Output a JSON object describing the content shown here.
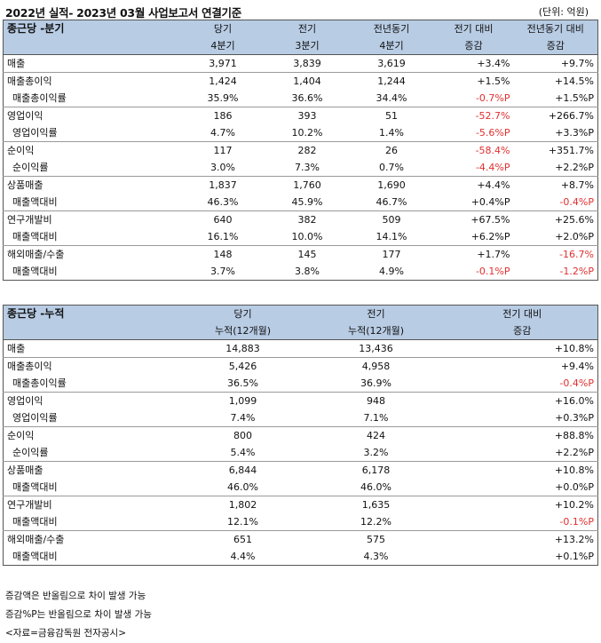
{
  "title": "2022년 실적- 2023년 03월 사업보고서 연결기준",
  "unit": "(단위: 억원)",
  "quarterly": {
    "headers": [
      "종근당 -분기",
      "당기\n4분기",
      "전기\n3분기",
      "전년동기\n4분기",
      "전기 대비\n증감",
      "전년동기 대비\n증감"
    ],
    "rows": [
      {
        "label": "매출",
        "v": [
          "3,971",
          "3,839",
          "3,619",
          "+3.4%",
          "+9.7%"
        ],
        "group": true
      },
      {
        "label": "매출총이익",
        "v": [
          "1,424",
          "1,404",
          "1,244",
          "+1.5%",
          "+14.5%"
        ],
        "group": true
      },
      {
        "label": "매출총이익률",
        "v": [
          "35.9%",
          "36.6%",
          "34.4%",
          "-0.7%P",
          "+1.5%P"
        ],
        "sub": true
      },
      {
        "label": "영업이익",
        "v": [
          "186",
          "393",
          "51",
          "-52.7%",
          "+266.7%"
        ],
        "group": true
      },
      {
        "label": "영업이익률",
        "v": [
          "4.7%",
          "10.2%",
          "1.4%",
          "-5.6%P",
          "+3.3%P"
        ],
        "sub": true
      },
      {
        "label": "순이익",
        "v": [
          "117",
          "282",
          "26",
          "-58.4%",
          "+351.7%"
        ],
        "group": true
      },
      {
        "label": "순이익률",
        "v": [
          "3.0%",
          "7.3%",
          "0.7%",
          "-4.4%P",
          "+2.2%P"
        ],
        "sub": true
      },
      {
        "label": "상품매출",
        "v": [
          "1,837",
          "1,760",
          "1,690",
          "+4.4%",
          "+8.7%"
        ],
        "group": true
      },
      {
        "label": "매출액대비",
        "v": [
          "46.3%",
          "45.9%",
          "46.7%",
          "+0.4%P",
          "-0.4%P"
        ],
        "sub": true
      },
      {
        "label": "연구개발비",
        "v": [
          "640",
          "382",
          "509",
          "+67.5%",
          "+25.6%"
        ],
        "group": true
      },
      {
        "label": "매출액대비",
        "v": [
          "16.1%",
          "10.0%",
          "14.1%",
          "+6.2%P",
          "+2.0%P"
        ],
        "sub": true
      },
      {
        "label": "해외매출/수출",
        "v": [
          "148",
          "145",
          "177",
          "+1.7%",
          "-16.7%"
        ],
        "group": true
      },
      {
        "label": "매출액대비",
        "v": [
          "3.7%",
          "3.8%",
          "4.9%",
          "-0.1%P",
          "-1.2%P"
        ],
        "sub": true
      }
    ]
  },
  "cumulative": {
    "headers": [
      "종근당 -누적",
      "당기\n누적(12개월)",
      "전기\n누적(12개월)",
      "전기 대비\n증감"
    ],
    "rows": [
      {
        "label": "매출",
        "v": [
          "14,883",
          "13,436",
          "+10.8%"
        ],
        "group": true
      },
      {
        "label": "매출총이익",
        "v": [
          "5,426",
          "4,958",
          "+9.4%"
        ],
        "group": true
      },
      {
        "label": "매출총이익률",
        "v": [
          "36.5%",
          "36.9%",
          "-0.4%P"
        ],
        "sub": true
      },
      {
        "label": "영업이익",
        "v": [
          "1,099",
          "948",
          "+16.0%"
        ],
        "group": true
      },
      {
        "label": "영업이익률",
        "v": [
          "7.4%",
          "7.1%",
          "+0.3%P"
        ],
        "sub": true
      },
      {
        "label": "순이익",
        "v": [
          "800",
          "424",
          "+88.8%"
        ],
        "group": true
      },
      {
        "label": "순이익률",
        "v": [
          "5.4%",
          "3.2%",
          "+2.2%P"
        ],
        "sub": true
      },
      {
        "label": "상품매출",
        "v": [
          "6,844",
          "6,178",
          "+10.8%"
        ],
        "group": true
      },
      {
        "label": "매출액대비",
        "v": [
          "46.0%",
          "46.0%",
          "+0.0%P"
        ],
        "sub": true
      },
      {
        "label": "연구개발비",
        "v": [
          "1,802",
          "1,635",
          "+10.2%"
        ],
        "group": true
      },
      {
        "label": "매출액대비",
        "v": [
          "12.1%",
          "12.2%",
          "-0.1%P"
        ],
        "sub": true
      },
      {
        "label": "해외매출/수출",
        "v": [
          "651",
          "575",
          "+13.2%"
        ],
        "group": true
      },
      {
        "label": "매출액대비",
        "v": [
          "4.4%",
          "4.3%",
          "+0.1%P"
        ],
        "sub": true
      }
    ]
  },
  "notes": [
    "증감액은 반올림으로 차이 발생 가능",
    "증감%P는 반올림으로 차이 발생 가능",
    "<자료=금융감독원 전자공시>"
  ],
  "colors": {
    "header_bg": "#b8cce4",
    "negative": "#e03030"
  }
}
